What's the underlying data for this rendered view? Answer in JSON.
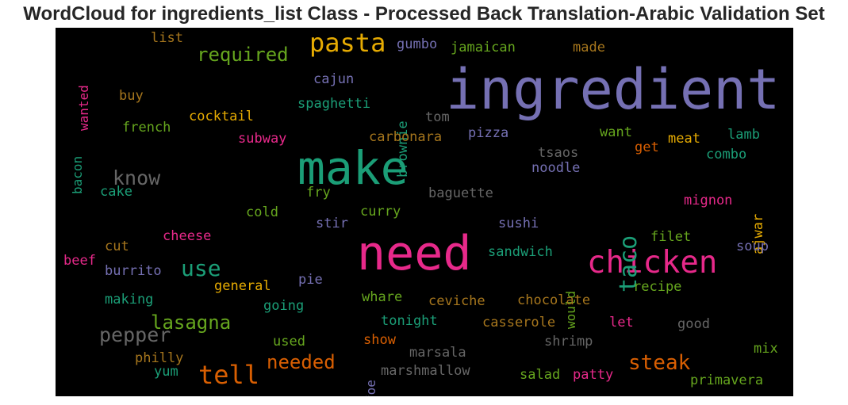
{
  "chart_data": {
    "type": "wordcloud",
    "title": "WordCloud for ingredients_list Class - Processed Back Translation-Arabic Validation Set",
    "background": "#000000",
    "colormap": "Dark2",
    "words": [
      {
        "text": "ingredient",
        "color": "#7570b3"
      },
      {
        "text": "need",
        "color": "#e7298a"
      },
      {
        "text": "make",
        "color": "#1b9e77"
      },
      {
        "text": "chicken",
        "color": "#e7298a"
      },
      {
        "text": "pasta",
        "color": "#e6ab02"
      },
      {
        "text": "tell",
        "color": "#d95f02"
      },
      {
        "text": "taco",
        "color": "#1b9e77"
      },
      {
        "text": "steak",
        "color": "#d95f02"
      },
      {
        "text": "use",
        "color": "#1b9e77"
      },
      {
        "text": "required",
        "color": "#66a61e"
      },
      {
        "text": "lasagna",
        "color": "#66a61e"
      },
      {
        "text": "needed",
        "color": "#d95f02"
      },
      {
        "text": "pepper",
        "color": "#666666"
      },
      {
        "text": "know",
        "color": "#666666"
      },
      {
        "text": "list",
        "color": "#a6761d"
      },
      {
        "text": "gumbo",
        "color": "#7570b3"
      },
      {
        "text": "jamaican",
        "color": "#66a61e"
      },
      {
        "text": "made",
        "color": "#a6761d"
      },
      {
        "text": "wanted",
        "color": "#e7298a"
      },
      {
        "text": "cajun",
        "color": "#7570b3"
      },
      {
        "text": "brownie",
        "color": "#1b9e77"
      },
      {
        "text": "buy",
        "color": "#a6761d"
      },
      {
        "text": "spaghetti",
        "color": "#1b9e77"
      },
      {
        "text": "cocktail",
        "color": "#e6ab02"
      },
      {
        "text": "tom",
        "color": "#666666"
      },
      {
        "text": "bacon",
        "color": "#1b9e77"
      },
      {
        "text": "french",
        "color": "#66a61e"
      },
      {
        "text": "pizza",
        "color": "#7570b3"
      },
      {
        "text": "want",
        "color": "#66a61e"
      },
      {
        "text": "lamb",
        "color": "#1b9e77"
      },
      {
        "text": "subway",
        "color": "#e7298a"
      },
      {
        "text": "carbonara",
        "color": "#a6761d"
      },
      {
        "text": "meat",
        "color": "#e6ab02"
      },
      {
        "text": "get",
        "color": "#d95f02"
      },
      {
        "text": "tsaos",
        "color": "#666666"
      },
      {
        "text": "combo",
        "color": "#1b9e77"
      },
      {
        "text": "noodle",
        "color": "#7570b3"
      },
      {
        "text": "ajwar",
        "color": "#e6ab02"
      },
      {
        "text": "cake",
        "color": "#1b9e77"
      },
      {
        "text": "fry",
        "color": "#66a61e"
      },
      {
        "text": "baguette",
        "color": "#666666"
      },
      {
        "text": "mignon",
        "color": "#e7298a"
      },
      {
        "text": "cold",
        "color": "#66a61e"
      },
      {
        "text": "curry",
        "color": "#66a61e"
      },
      {
        "text": "stir",
        "color": "#7570b3"
      },
      {
        "text": "sushi",
        "color": "#7570b3"
      },
      {
        "text": "cheese",
        "color": "#e7298a"
      },
      {
        "text": "filet",
        "color": "#66a61e"
      },
      {
        "text": "cut",
        "color": "#a6761d"
      },
      {
        "text": "soup",
        "color": "#7570b3"
      },
      {
        "text": "beef",
        "color": "#e7298a"
      },
      {
        "text": "sandwich",
        "color": "#1b9e77"
      },
      {
        "text": "burrito",
        "color": "#7570b3"
      },
      {
        "text": "would",
        "color": "#66a61e"
      },
      {
        "text": "general",
        "color": "#e6ab02"
      },
      {
        "text": "pie",
        "color": "#7570b3"
      },
      {
        "text": "recipe",
        "color": "#66a61e"
      },
      {
        "text": "making",
        "color": "#1b9e77"
      },
      {
        "text": "going",
        "color": "#1b9e77"
      },
      {
        "text": "whare",
        "color": "#66a61e"
      },
      {
        "text": "ceviche",
        "color": "#a6761d"
      },
      {
        "text": "chocolate",
        "color": "#a6761d"
      },
      {
        "text": "tonight",
        "color": "#1b9e77"
      },
      {
        "text": "casserole",
        "color": "#a6761d"
      },
      {
        "text": "let",
        "color": "#e7298a"
      },
      {
        "text": "good",
        "color": "#666666"
      },
      {
        "text": "used",
        "color": "#66a61e"
      },
      {
        "text": "show",
        "color": "#d95f02"
      },
      {
        "text": "shrimp",
        "color": "#666666"
      },
      {
        "text": "marsala",
        "color": "#666666"
      },
      {
        "text": "mix",
        "color": "#66a61e"
      },
      {
        "text": "philly",
        "color": "#a6761d"
      },
      {
        "text": "foe",
        "color": "#7570b3"
      },
      {
        "text": "yum",
        "color": "#1b9e77"
      },
      {
        "text": "marshmallow",
        "color": "#666666"
      },
      {
        "text": "salad",
        "color": "#66a61e"
      },
      {
        "text": "patty",
        "color": "#e7298a"
      },
      {
        "text": "primavera",
        "color": "#66a61e"
      }
    ]
  }
}
